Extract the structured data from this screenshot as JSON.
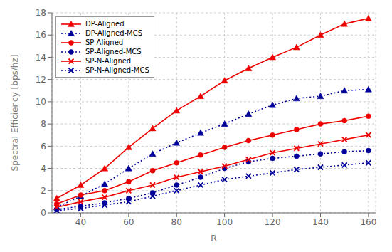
{
  "chart_data": {
    "type": "line",
    "xlabel": "R",
    "ylabel": "Spectral Efficiency [bps/hz]",
    "x": [
      30,
      40,
      50,
      60,
      70,
      80,
      90,
      100,
      110,
      120,
      130,
      140,
      150,
      160
    ],
    "series": [
      {
        "name": "DP-Aligned",
        "color": "#EE0000",
        "marker": "triangle",
        "line_style": "solid",
        "values": [
          1.3,
          2.5,
          4.0,
          5.9,
          7.6,
          9.2,
          10.5,
          11.9,
          13.0,
          14.0,
          14.9,
          16.0,
          17.0,
          17.5
        ]
      },
      {
        "name": "DP-Aligned-MCS",
        "color": "#000099",
        "marker": "triangle",
        "line_style": "dotted",
        "values": [
          0.5,
          1.5,
          2.6,
          4.0,
          5.3,
          6.3,
          7.2,
          8.0,
          8.9,
          9.7,
          10.3,
          10.5,
          11.0,
          11.1
        ]
      },
      {
        "name": "SP-Aligned",
        "color": "#EE0000",
        "marker": "circle",
        "line_style": "solid",
        "values": [
          0.8,
          1.6,
          2.0,
          2.8,
          3.8,
          4.5,
          5.2,
          5.9,
          6.5,
          7.0,
          7.5,
          8.0,
          8.3,
          8.7
        ]
      },
      {
        "name": "SP-Aligned-MCS",
        "color": "#000099",
        "marker": "circle",
        "line_style": "dotted",
        "values": [
          0.3,
          0.6,
          0.9,
          1.3,
          1.8,
          2.5,
          3.2,
          4.0,
          4.6,
          4.9,
          5.1,
          5.3,
          5.5,
          5.6
        ]
      },
      {
        "name": "SP-N-Aligned",
        "color": "#EE0000",
        "marker": "x",
        "line_style": "solid",
        "values": [
          0.5,
          1.0,
          1.4,
          2.0,
          2.5,
          3.2,
          3.7,
          4.2,
          4.8,
          5.4,
          5.8,
          6.2,
          6.6,
          7.0
        ]
      },
      {
        "name": "SP-N-Aligned-MCS",
        "color": "#000099",
        "marker": "x",
        "line_style": "dotted",
        "values": [
          0.2,
          0.4,
          0.7,
          1.0,
          1.5,
          2.0,
          2.5,
          3.0,
          3.3,
          3.6,
          3.9,
          4.1,
          4.3,
          4.5
        ]
      }
    ],
    "xlim": [
      28,
      163
    ],
    "ylim": [
      0,
      18
    ],
    "xticks": [
      40,
      60,
      80,
      100,
      120,
      140,
      160
    ],
    "yticks": [
      0,
      2,
      4,
      6,
      8,
      10,
      12,
      14,
      16,
      18
    ],
    "grid": true,
    "legend": "upper left"
  }
}
